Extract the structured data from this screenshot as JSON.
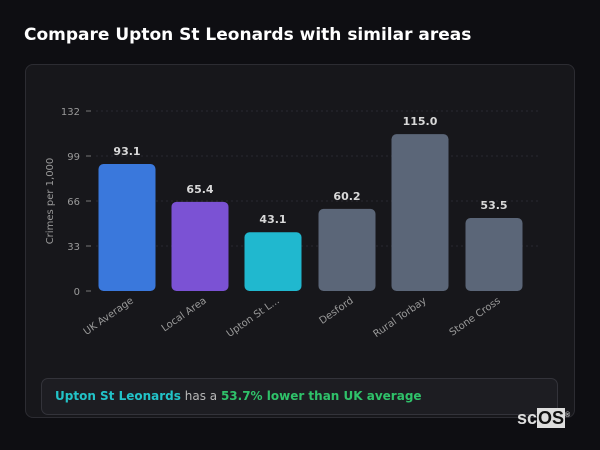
{
  "title": "Compare Upton St Leonards with similar areas",
  "chart_data": {
    "type": "bar",
    "title": "",
    "ylabel": "Crimes per 1,000",
    "xlabel": "",
    "ylim": [
      0,
      132
    ],
    "yticks": [
      0,
      33,
      66,
      99,
      132
    ],
    "grid": true,
    "categories": [
      "UK Average",
      "Local Area",
      "Upton St L...",
      "Desford",
      "Rural Torbay",
      "Stone Cross"
    ],
    "values": [
      93.1,
      65.4,
      43.1,
      60.2,
      115.0,
      53.5
    ],
    "value_labels": [
      "93.1",
      "65.4",
      "43.1",
      "60.2",
      "115.0",
      "53.5"
    ],
    "colors": [
      "#3a78dc",
      "#7b52d4",
      "#20b8cf",
      "#5b6678",
      "#5b6678",
      "#5b6678"
    ]
  },
  "summary": {
    "area": "Upton St Leonards",
    "middle": " has a ",
    "stat": "53.7% lower than UK average"
  },
  "logo": {
    "text_a": "sc",
    "text_b": "OS",
    "mark": "®"
  }
}
